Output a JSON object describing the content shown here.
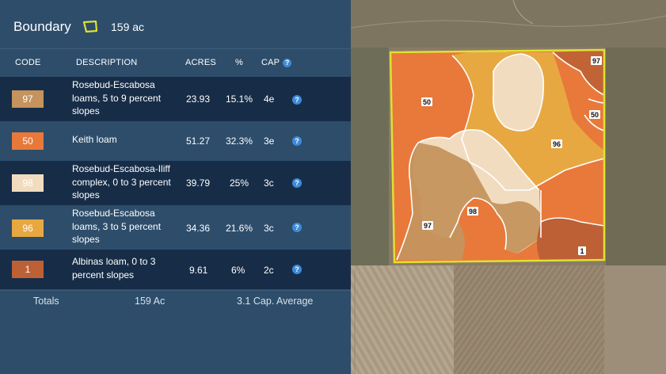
{
  "header": {
    "title": "Boundary",
    "total_acres": "159 ac",
    "accent_color": "#e0e031"
  },
  "table": {
    "columns": [
      "CODE",
      "DESCRIPTION",
      "ACRES",
      "%",
      "CAP"
    ],
    "rows": [
      {
        "code": "97",
        "description": "Rosebud-Escabosa loams, 5 to 9 percent slopes",
        "acres": "23.93",
        "percent": "15.1%",
        "cap": "4e",
        "color": "#c5935e"
      },
      {
        "code": "50",
        "description": "Keith loam",
        "acres": "51.27",
        "percent": "32.3%",
        "cap": "3e",
        "color": "#e8793a"
      },
      {
        "code": "98",
        "description": "Rosebud-Escabosa-Iliff complex, 0 to 3 percent slopes",
        "acres": "39.79",
        "percent": "25%",
        "cap": "3c",
        "color": "#f2dcc0"
      },
      {
        "code": "96",
        "description": "Rosebud-Escabosa loams, 3 to 5 percent slopes",
        "acres": "34.36",
        "percent": "21.6%",
        "cap": "3c",
        "color": "#e8a841"
      },
      {
        "code": "1",
        "description": "Albinas loam, 0 to 3 percent slopes",
        "acres": "9.61",
        "percent": "6%",
        "cap": "2c",
        "color": "#bd6035"
      }
    ]
  },
  "totals": {
    "label": "Totals",
    "acres": "159 Ac",
    "cap_average": "3.1 Cap. Average"
  },
  "map": {
    "labels": {
      "a": "97",
      "b": "50",
      "c": "50",
      "d": "96",
      "e": "98",
      "f": "97",
      "g": "1"
    }
  }
}
